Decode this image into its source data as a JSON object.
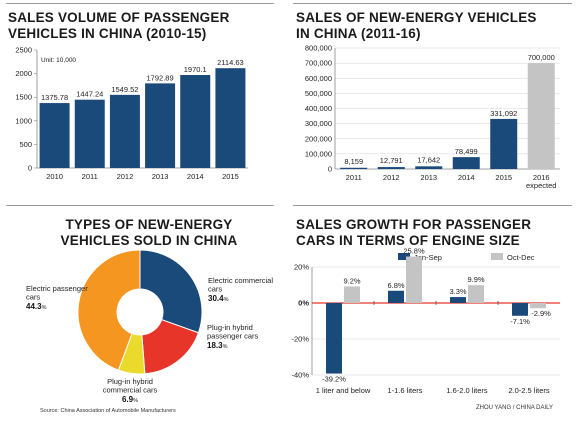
{
  "chart_data": [
    {
      "type": "bar",
      "title": "SALES VOLUME OF PASSENGER VEHICLES IN CHINA (2010-15)",
      "unit_note": "Unit: 10,000",
      "categories": [
        "2010",
        "2011",
        "2012",
        "2013",
        "2014",
        "2015"
      ],
      "values": [
        1375.78,
        1447.24,
        1549.52,
        1792.89,
        1970.1,
        2114.63
      ],
      "value_labels": [
        "1375.78",
        "1447.24",
        "1549.52",
        "1792.89",
        "1970.1",
        "2114.63"
      ],
      "ylim": [
        0,
        2500
      ],
      "yticks": [
        "0",
        "500",
        "1000",
        "1500",
        "2000",
        "2500"
      ],
      "colors": {
        "bar": "#1a4a7a"
      },
      "grid": false
    },
    {
      "type": "bar",
      "title": "SALES OF NEW-ENERGY VEHICLES IN CHINA (2011-16)",
      "categories": [
        "2011",
        "2012",
        "2013",
        "2014",
        "2015",
        "2016"
      ],
      "category_notes": [
        "",
        "",
        "",
        "",
        "",
        "expected"
      ],
      "values": [
        8159,
        12791,
        17642,
        78499,
        331092,
        700000
      ],
      "value_labels": [
        "8,159",
        "12,791",
        "17,642",
        "78,499",
        "331,092",
        "700,000"
      ],
      "ylim": [
        0,
        800000
      ],
      "yticks": [
        "0",
        "100,000",
        "200,000",
        "300,000",
        "400,000",
        "500,000",
        "600,000",
        "700,000",
        "800,000"
      ],
      "colors": {
        "bar": "#1a4a7a",
        "expected": "#c4c4c4"
      },
      "grid": true
    },
    {
      "type": "pie",
      "title": "TYPES OF NEW-ENERGY VEHICLES SOLD IN CHINA",
      "slices": [
        {
          "label": "Electric commercial cars",
          "value": 30.4,
          "value_label": "30.4",
          "color": "#1a4a7a"
        },
        {
          "label": "Plug-in hybrid passenger cars",
          "value": 18.3,
          "value_label": "18.3",
          "color": "#e8352a"
        },
        {
          "label": "Plug-in hybrid commercial cars",
          "value": 6.9,
          "value_label": "6.9",
          "color": "#e9da2c"
        },
        {
          "label": "Electric passenger cars",
          "value": 44.3,
          "value_label": "44.3",
          "color": "#f4961f"
        }
      ],
      "percent_sign": "%"
    },
    {
      "type": "bar",
      "title": "SALES GROWTH FOR PASSENGER CARS IN TERMS OF ENGINE SIZE",
      "categories": [
        "1 liter and below",
        "1-1.6 liters",
        "1.6-2.0 liters",
        "2.0-2.5 liters"
      ],
      "series": [
        {
          "name": "Jan-Sep",
          "values": [
            -39.2,
            6.8,
            3.3,
            -7.1
          ],
          "labels": [
            "-39.2%",
            "6.8%",
            "3.3%",
            "-7.1%"
          ],
          "color": "#1a4a7a"
        },
        {
          "name": "Oct-Dec",
          "values": [
            9.2,
            25.8,
            9.9,
            -2.9
          ],
          "labels": [
            "9.2%",
            "25.8%",
            "9.9%",
            "-2.9%"
          ],
          "color": "#c4c4c4"
        }
      ],
      "ylim": [
        -40,
        20
      ],
      "yticks": [
        "20%",
        "0%",
        "-20%",
        "-40%"
      ],
      "zero_line_color": "#e8352a",
      "legend": "top-right",
      "grid": true
    }
  ],
  "footer": {
    "source": "Source: China Association of Automobile Manufacturers",
    "credit": "ZHOU YANG / CHINA DAILY"
  }
}
